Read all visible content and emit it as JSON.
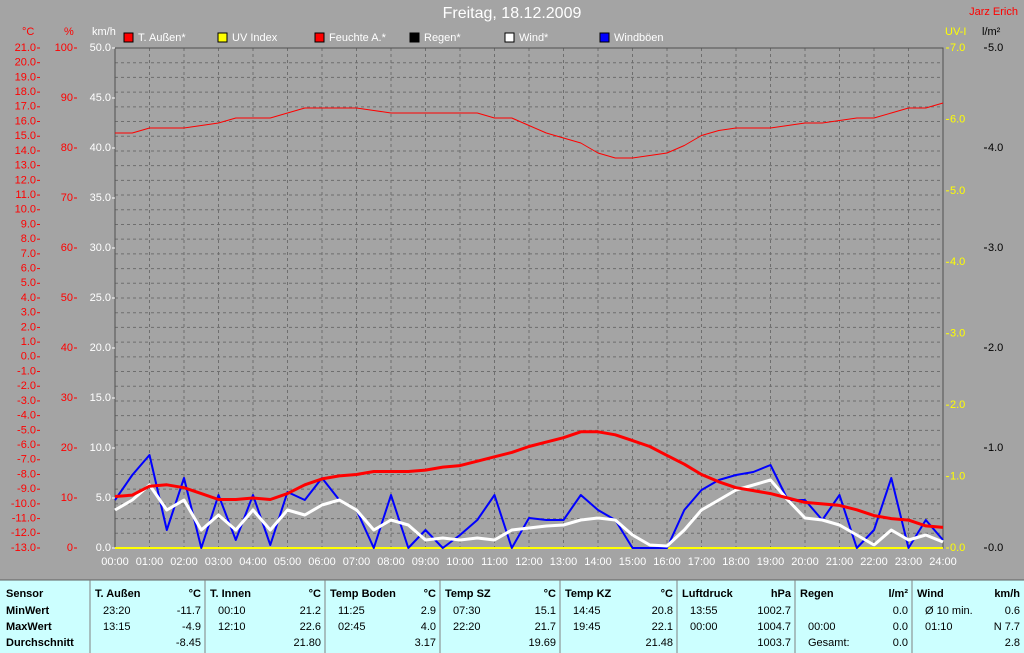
{
  "chart_data": {
    "type": "line",
    "title": "Freitag, 18.12.2009",
    "annotations": [
      "Jarz Erich"
    ],
    "xlim": [
      0,
      24
    ],
    "xticks": [
      {
        "value": 0,
        "label": "00:00"
      },
      {
        "value": 1,
        "label": "01:00"
      },
      {
        "value": 2,
        "label": "02:00"
      },
      {
        "value": 3,
        "label": "03:00"
      },
      {
        "value": 4,
        "label": "04:00"
      },
      {
        "value": 5,
        "label": "05:00"
      },
      {
        "value": 6,
        "label": "06:00"
      },
      {
        "value": 7,
        "label": "07:00"
      },
      {
        "value": 8,
        "label": "08:00"
      },
      {
        "value": 9,
        "label": "09:00"
      },
      {
        "value": 10,
        "label": "10:00"
      },
      {
        "value": 11,
        "label": "11:00"
      },
      {
        "value": 12,
        "label": "12:00"
      },
      {
        "value": 13,
        "label": "13:00"
      },
      {
        "value": 14,
        "label": "14:00"
      },
      {
        "value": 15,
        "label": "15:00"
      },
      {
        "value": 16,
        "label": "16:00"
      },
      {
        "value": 17,
        "label": "17:00"
      },
      {
        "value": 18,
        "label": "18:00"
      },
      {
        "value": 19,
        "label": "19:00"
      },
      {
        "value": 20,
        "label": "20:00"
      },
      {
        "value": 21,
        "label": "21:00"
      },
      {
        "value": 22,
        "label": "22:00"
      },
      {
        "value": 23,
        "label": "23:00"
      },
      {
        "value": 24,
        "label": "24:00"
      }
    ],
    "grid": true,
    "y_axes": [
      {
        "label": "°C",
        "color": "#ff0000",
        "ylim": [
          -13,
          21
        ],
        "yticks": [
          {
            "value": -13,
            "label": "-13.0"
          },
          {
            "value": -12,
            "label": "-12.0"
          },
          {
            "value": -11,
            "label": "-11.0"
          },
          {
            "value": -10,
            "label": "-10.0"
          },
          {
            "value": -9,
            "label": "-9.0"
          },
          {
            "value": -8,
            "label": "-8.0"
          },
          {
            "value": -7,
            "label": "-7.0"
          },
          {
            "value": -6,
            "label": "-6.0"
          },
          {
            "value": -5,
            "label": "-5.0"
          },
          {
            "value": -4,
            "label": "-4.0"
          },
          {
            "value": -3,
            "label": "-3.0"
          },
          {
            "value": -2,
            "label": "-2.0"
          },
          {
            "value": -1,
            "label": "-1.0"
          },
          {
            "value": 0,
            "label": "0.0"
          },
          {
            "value": 1,
            "label": "1.0"
          },
          {
            "value": 2,
            "label": "2.0"
          },
          {
            "value": 3,
            "label": "3.0"
          },
          {
            "value": 4,
            "label": "4.0"
          },
          {
            "value": 5,
            "label": "5.0"
          },
          {
            "value": 6,
            "label": "6.0"
          },
          {
            "value": 7,
            "label": "7.0"
          },
          {
            "value": 8,
            "label": "8.0"
          },
          {
            "value": 9,
            "label": "9.0"
          },
          {
            "value": 10,
            "label": "10.0"
          },
          {
            "value": 11,
            "label": "11.0"
          },
          {
            "value": 12,
            "label": "12.0"
          },
          {
            "value": 13,
            "label": "13.0"
          },
          {
            "value": 14,
            "label": "14.0"
          },
          {
            "value": 15,
            "label": "15.0"
          },
          {
            "value": 16,
            "label": "16.0"
          },
          {
            "value": 17,
            "label": "17.0"
          },
          {
            "value": 18,
            "label": "18.0"
          },
          {
            "value": 19,
            "label": "19.0"
          },
          {
            "value": 20,
            "label": "20.0"
          },
          {
            "value": 21,
            "label": "21.0"
          }
        ]
      },
      {
        "label": "%",
        "color": "#ff0000",
        "ylim": [
          0,
          100
        ],
        "yticks": [
          0,
          10,
          20,
          30,
          40,
          50,
          60,
          70,
          80,
          90,
          100
        ]
      },
      {
        "label": "km/h",
        "color": "#ffffff",
        "ylim": [
          0,
          50
        ],
        "yticks": [
          {
            "value": 0,
            "label": "0.0"
          },
          {
            "value": 5,
            "label": "5.0"
          },
          {
            "value": 10,
            "label": "10.0"
          },
          {
            "value": 15,
            "label": "15.0"
          },
          {
            "value": 20,
            "label": "20.0"
          },
          {
            "value": 25,
            "label": "25.0"
          },
          {
            "value": 30,
            "label": "30.0"
          },
          {
            "value": 35,
            "label": "35.0"
          },
          {
            "value": 40,
            "label": "40.0"
          },
          {
            "value": 45,
            "label": "45.0"
          },
          {
            "value": 50,
            "label": "50.0"
          }
        ]
      },
      {
        "label": "UV-I",
        "color": "#ffff00",
        "ylim": [
          0,
          7
        ],
        "yticks": [
          {
            "value": 0,
            "label": "0.0"
          },
          {
            "value": 1,
            "label": "1.0"
          },
          {
            "value": 2,
            "label": "2.0"
          },
          {
            "value": 3,
            "label": "3.0"
          },
          {
            "value": 4,
            "label": "4.0"
          },
          {
            "value": 5,
            "label": "5.0"
          },
          {
            "value": 6,
            "label": "6.0"
          },
          {
            "value": 7,
            "label": "7.0"
          }
        ]
      },
      {
        "label": "l/m²",
        "color": "#000000",
        "ylim": [
          0,
          5
        ],
        "yticks": [
          {
            "value": 0,
            "label": "0.0"
          },
          {
            "value": 1,
            "label": "1.0"
          },
          {
            "value": 2,
            "label": "2.0"
          },
          {
            "value": 3,
            "label": "3.0"
          },
          {
            "value": 4,
            "label": "4.0"
          },
          {
            "value": 5,
            "label": "5.0"
          }
        ]
      }
    ],
    "x": [
      0,
      0.5,
      1,
      1.5,
      2,
      2.5,
      3,
      3.5,
      4,
      4.5,
      5,
      5.5,
      6,
      6.5,
      7,
      7.5,
      8,
      8.5,
      9,
      9.5,
      10,
      10.5,
      11,
      11.5,
      12,
      12.5,
      13,
      13.5,
      14,
      14.5,
      15,
      15.5,
      16,
      16.5,
      17,
      17.5,
      18,
      18.5,
      19,
      19.5,
      20,
      20.5,
      21,
      21.5,
      22,
      22.5,
      23,
      23.5,
      24
    ],
    "series": [
      {
        "name": "T. Außen*",
        "color": "#ff0000",
        "axis": "°C",
        "values": [
          -9.5,
          -9.4,
          -8.8,
          -8.7,
          -8.9,
          -9.3,
          -9.7,
          -9.7,
          -9.6,
          -9.7,
          -9.3,
          -8.7,
          -8.3,
          -8.1,
          -8.0,
          -7.8,
          -7.8,
          -7.8,
          -7.7,
          -7.5,
          -7.4,
          -7.1,
          -6.8,
          -6.5,
          -6.1,
          -5.8,
          -5.5,
          -5.1,
          -5.1,
          -5.3,
          -5.7,
          -6.1,
          -6.7,
          -7.3,
          -8.0,
          -8.5,
          -8.9,
          -9.1,
          -9.3,
          -9.6,
          -9.9,
          -10.0,
          -10.1,
          -10.4,
          -10.8,
          -11.0,
          -11.1,
          -11.5,
          -11.6
        ]
      },
      {
        "name": "UV Index",
        "color": "#ffff00",
        "axis": "UV-I",
        "values": [
          0,
          0,
          0,
          0,
          0,
          0,
          0,
          0,
          0,
          0,
          0,
          0,
          0,
          0,
          0,
          0,
          0,
          0,
          0,
          0,
          0,
          0,
          0,
          0,
          0,
          0,
          0,
          0,
          0,
          0,
          0,
          0,
          0,
          0,
          0,
          0,
          0,
          0,
          0,
          0,
          0,
          0,
          0,
          0,
          0,
          0,
          0,
          0,
          0
        ]
      },
      {
        "name": "Feuchte A.*",
        "color": "#ff0000",
        "axis": "%",
        "values": [
          83,
          83,
          84,
          84,
          84,
          84.5,
          85,
          86,
          86,
          86,
          87,
          88,
          88,
          88,
          88,
          87.5,
          87,
          87,
          87,
          87,
          87,
          87,
          86,
          86,
          84.5,
          83,
          82,
          81,
          79,
          78,
          78,
          78.5,
          79,
          80.5,
          82.5,
          83.5,
          84,
          84,
          84,
          84.5,
          85,
          85,
          85.5,
          86,
          86,
          87,
          88,
          88,
          89
        ]
      },
      {
        "name": "Regen*",
        "color": "#000000",
        "axis": "l/m²",
        "values": [
          0,
          0,
          0,
          0,
          0,
          0,
          0,
          0,
          0,
          0,
          0,
          0,
          0,
          0,
          0,
          0,
          0,
          0,
          0,
          0,
          0,
          0,
          0,
          0,
          0,
          0,
          0,
          0,
          0,
          0,
          0,
          0,
          0,
          0,
          0,
          0,
          0,
          0,
          0,
          0,
          0,
          0,
          0,
          0,
          0,
          0,
          0,
          0,
          0
        ]
      },
      {
        "name": "Wind*",
        "color": "#ffffff",
        "axis": "km/h",
        "values": [
          3.8,
          4.8,
          6.3,
          3.8,
          4.8,
          1.8,
          3.3,
          1.8,
          3.8,
          1.8,
          3.8,
          3.3,
          4.3,
          4.8,
          3.8,
          1.8,
          2.8,
          2.3,
          0.8,
          1.0,
          0.8,
          1.0,
          0.8,
          1.8,
          2.0,
          2.2,
          2.3,
          2.8,
          3.0,
          2.8,
          1.3,
          0.3,
          0.2,
          1.8,
          3.8,
          4.8,
          5.8,
          6.3,
          6.8,
          4.8,
          3.0,
          2.8,
          2.3,
          1.3,
          0.3,
          1.8,
          0.8,
          1.3,
          0.6
        ]
      },
      {
        "name": "Windböen",
        "color": "#0000ff",
        "axis": "km/h",
        "values": [
          4.8,
          7.3,
          9.3,
          1.8,
          7.0,
          0,
          5.3,
          0.8,
          5.3,
          0.3,
          5.6,
          4.8,
          7.0,
          4.8,
          3.8,
          0,
          5.3,
          0,
          1.8,
          0,
          1.3,
          2.8,
          5.3,
          0,
          3.0,
          2.8,
          2.8,
          5.3,
          3.8,
          2.8,
          0,
          0,
          0,
          3.8,
          5.8,
          6.8,
          7.3,
          7.6,
          8.3,
          4.8,
          4.8,
          2.8,
          5.3,
          0,
          1.8,
          7.0,
          0,
          2.8,
          0.8
        ]
      }
    ]
  },
  "stats_table": {
    "row_header": "Sensor",
    "rows": [
      "MinWert",
      "MaxWert",
      "Durchschnitt"
    ],
    "columns": [
      {
        "title": "T. Außen",
        "unit": "°C",
        "cells": [
          {
            "left": "23:20",
            "right": "-11.7"
          },
          {
            "left": "13:15",
            "right": "-4.9"
          },
          {
            "right": "-8.45"
          }
        ]
      },
      {
        "title": "T. Innen",
        "unit": "°C",
        "cells": [
          {
            "left": "00:10",
            "right": "21.2"
          },
          {
            "left": "12:10",
            "right": "22.6"
          },
          {
            "right": "21.80"
          }
        ]
      },
      {
        "title": "Temp Boden",
        "unit": "°C",
        "cells": [
          {
            "left": "11:25",
            "right": "2.9"
          },
          {
            "left": "02:45",
            "right": "4.0"
          },
          {
            "right": "3.17"
          }
        ]
      },
      {
        "title": "Temp SZ",
        "unit": "°C",
        "cells": [
          {
            "left": "07:30",
            "right": "15.1"
          },
          {
            "left": "22:20",
            "right": "21.7"
          },
          {
            "right": "19.69"
          }
        ]
      },
      {
        "title": "Temp KZ",
        "unit": "°C",
        "cells": [
          {
            "left": "14:45",
            "right": "20.8"
          },
          {
            "left": "19:45",
            "right": "22.1"
          },
          {
            "right": "21.48"
          }
        ]
      },
      {
        "title": "Luftdruck",
        "unit": "hPa",
        "cells": [
          {
            "left": "13:55",
            "right": "1002.7"
          },
          {
            "left": "00:00",
            "right": "1004.7"
          },
          {
            "right": "1003.7"
          }
        ]
      },
      {
        "title": "Regen",
        "unit": "l/m²",
        "cells": [
          {
            "right": "0.0"
          },
          {
            "left": "00:00",
            "right": "0.0"
          },
          {
            "left": "Gesamt:",
            "right": "0.0"
          }
        ]
      },
      {
        "title": "Wind",
        "unit": "km/h",
        "cells": [
          {
            "left": "Ø 10 min.",
            "right": "0.6"
          },
          {
            "left": "01:10",
            "right": "N 7.7"
          },
          {
            "right": "2.8"
          }
        ]
      }
    ]
  }
}
